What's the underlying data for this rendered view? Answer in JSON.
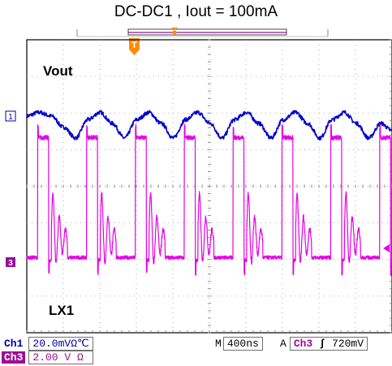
{
  "chart_data": {
    "type": "line",
    "title": "DC-DC1 , Iout = 100mA",
    "grid": true,
    "divisions": {
      "x": 10,
      "y": 8
    },
    "time_per_div_ns": 400,
    "x_range_ns": [
      0,
      4000
    ],
    "series": [
      {
        "name": "Vout",
        "channel": "1",
        "color": "#0000cc",
        "volts_per_div_mV": 20.0,
        "shape": "periodic ripple",
        "period_ns": 535,
        "x": [
          0,
          134,
          268,
          401,
          535,
          669,
          803,
          936,
          1070,
          1204,
          1338,
          1471,
          1605,
          1739,
          1873,
          2006,
          2140,
          2274,
          2408,
          2541,
          2675,
          2809,
          2943,
          3076,
          3210,
          3344,
          3478,
          3611,
          3745,
          3879,
          4000
        ],
        "y_mV": [
          0,
          2,
          0,
          -6,
          -12,
          -2,
          2,
          -4,
          -12,
          -2,
          2,
          -4,
          -12,
          -2,
          2,
          -4,
          -12,
          -2,
          2,
          -4,
          -12,
          -2,
          2,
          -4,
          -12,
          -2,
          2,
          -4,
          -12,
          -4,
          -8
        ]
      },
      {
        "name": "LX1",
        "channel": "3",
        "color": "#e600e6",
        "volts_per_div": 2.0,
        "shape": "switching node pulses with ringing",
        "period_ns": 535,
        "pulse_high_V": 6.8,
        "pulse_low_V": 0.0,
        "pulse_width_ns": 120,
        "ringing_duration_ns": 175
      }
    ],
    "labels": {
      "vout": "Vout",
      "lx1": "LX1"
    },
    "markers": {
      "ch1": "1",
      "ch3": "3",
      "trigger": "T"
    },
    "status": {
      "ch1_tag": "Ch1",
      "ch1_scale": "20.0mVΩ℃",
      "ch3_tag": "Ch3",
      "ch3_scale": "2.00 V Ω",
      "timebase_prefix": "M",
      "timebase": "400ns",
      "trigger_mode": "A",
      "trigger_source": "Ch3",
      "trigger_slope": "ʃ",
      "trigger_level": "720mV"
    }
  }
}
